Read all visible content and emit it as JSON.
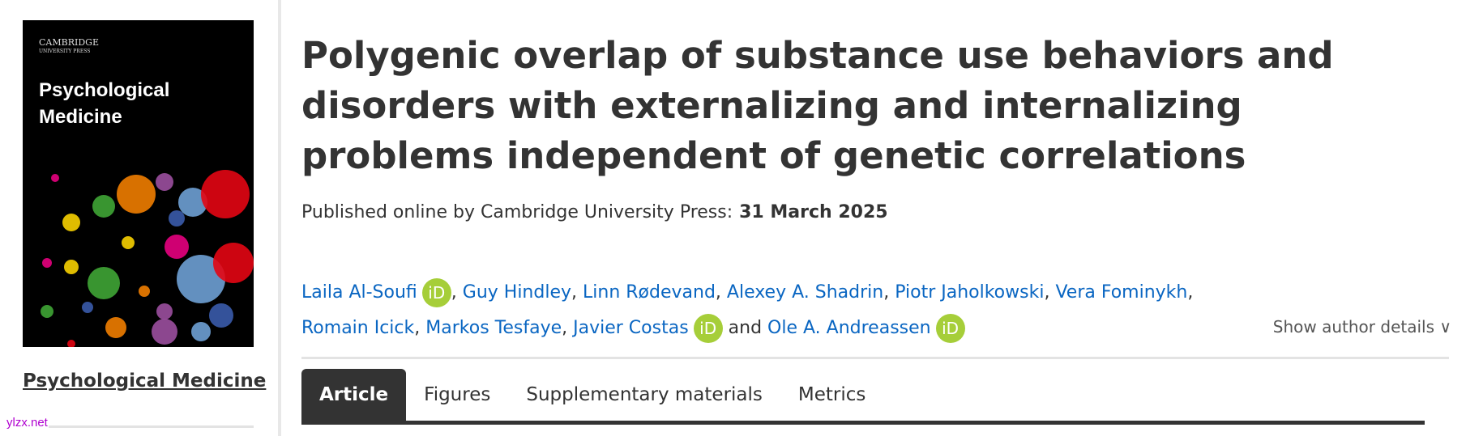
{
  "sidebar": {
    "cover": {
      "publisher_logo": "CAMBRIDGE UNIVERSITY PRESS",
      "title": "Psychological Medicine"
    },
    "journal_link": "Psychological Medicine",
    "watermark": "ylzx.net"
  },
  "article": {
    "title": "Polygenic overlap of substance use behaviors and disorders with externalizing and internalizing problems independent of genetic correlations",
    "published_label": "Published online by Cambridge University Press:",
    "published_date": "31 March 2025",
    "authors": [
      {
        "name": "Laila Al-Soufi",
        "orcid": true
      },
      {
        "name": "Guy Hindley"
      },
      {
        "name": "Linn Rødevand"
      },
      {
        "name": "Alexey A. Shadrin"
      },
      {
        "name": "Piotr Jaholkowski"
      },
      {
        "name": "Vera Fominykh"
      },
      {
        "name": "Romain Icick"
      },
      {
        "name": "Markos Tesfaye"
      },
      {
        "name": "Javier Costas",
        "orcid": true
      },
      {
        "name": "Ole A. Andreassen",
        "orcid": true
      }
    ],
    "and": "and",
    "orcid_label": "iD",
    "show_author_details": "Show author details"
  },
  "tabs": [
    {
      "label": "Article",
      "active": true
    },
    {
      "label": "Figures"
    },
    {
      "label": "Supplementary materials"
    },
    {
      "label": "Metrics"
    }
  ],
  "colors": {
    "link": "#0a66c2",
    "orcid": "#a6ce39",
    "tab_active": "#333333"
  }
}
